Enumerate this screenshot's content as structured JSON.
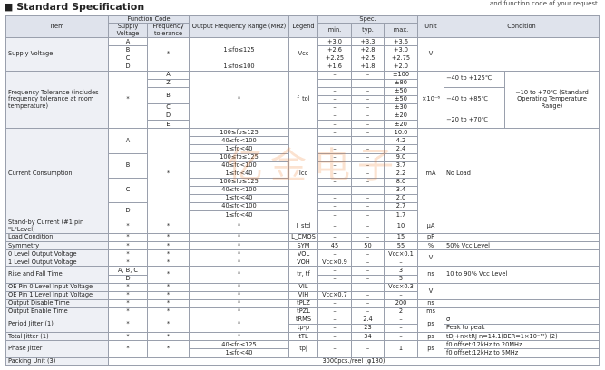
{
  "title": "■ Standard Specification",
  "note": "and function code of your request.",
  "watermark": "亿金电子",
  "table": {
    "header": [
      [
        "Item",
        "Function Code",
        "Output Frequency Range (MHz)",
        "Legend",
        "Spec.",
        "Unit",
        "Condition"
      ],
      [
        "Supply Voltage",
        "Frequency tolerance",
        "min.",
        "typ.",
        "max."
      ]
    ],
    "rows": [
      [
        "Supply Voltage",
        "A",
        "*",
        "1≤fo≤125",
        "Vcc",
        "+3.0",
        "+3.3",
        "+3.6",
        "V"
      ],
      [
        "B",
        "+2.6",
        "+2.8",
        "+3.0"
      ],
      [
        "C",
        "+2.25",
        "+2.5",
        "+2.75"
      ],
      [
        "D",
        "1≤fo≤100",
        "+1.6",
        "+1.8",
        "+2.0"
      ],
      [
        "Frequency Tolerance (includes frequency tolerance at room temperature)",
        "*",
        "A",
        "*",
        "f_tol",
        "–",
        "–",
        "±100",
        "×10⁻⁶",
        "−40 to +125℃",
        "−10 to +70℃ (Standard Operating Temperature Range)"
      ],
      [
        "Z",
        "–",
        "–",
        "±80"
      ],
      [
        "B",
        "–",
        "–",
        "±50",
        "−40 to +85℃"
      ],
      [
        "–",
        "–",
        "±50"
      ],
      [
        "C",
        "–",
        "–",
        "±30"
      ],
      [
        "D",
        "–",
        "–",
        "±20",
        "−20 to +70℃"
      ],
      [
        "E",
        "–",
        "–",
        "±20"
      ],
      [
        "Current Consumption",
        "A",
        "*",
        "100≤fo≤125",
        "Icc",
        "–",
        "–",
        "10.0",
        "mA",
        "No Load"
      ],
      [
        "40≤fo<100",
        "–",
        "–",
        "4.2"
      ],
      [
        "1≤fo<40",
        "–",
        "–",
        "2.4"
      ],
      [
        "B",
        "100≤fo≤125",
        "–",
        "–",
        "9.0"
      ],
      [
        "40≤fo<100",
        "–",
        "–",
        "3.7"
      ],
      [
        "1≤fo<40",
        "–",
        "–",
        "2.2"
      ],
      [
        "C",
        "100≤fo≤125",
        "–",
        "–",
        "8.0"
      ],
      [
        "40≤fo<100",
        "–",
        "–",
        "3.4"
      ],
      [
        "1≤fo<40",
        "–",
        "–",
        "2.0"
      ],
      [
        "D",
        "40≤fo<100",
        "–",
        "–",
        "2.7"
      ],
      [
        "1≤fo<40",
        "–",
        "–",
        "1.7"
      ],
      [
        "Stand-by Current (#1 pin \"L\"Level)",
        "*",
        "*",
        "*",
        "I_std",
        "–",
        "–",
        "10",
        "µA"
      ],
      [
        "Load Condition",
        "*",
        "*",
        "*",
        "L_CMOS",
        "–",
        "–",
        "15",
        "pF"
      ],
      [
        "Symmetry",
        "*",
        "*",
        "*",
        "SYM",
        "45",
        "50",
        "55",
        "%",
        "50% Vcc Level"
      ],
      [
        "0 Level Output Voltage",
        "*",
        "*",
        "*",
        "VOL",
        "–",
        "–",
        "Vcc×0.1",
        "V"
      ],
      [
        "1 Level Output Voltage",
        "*",
        "*",
        "*",
        "VOH",
        "Vcc×0.9",
        "–",
        "–"
      ],
      [
        "Rise and Fall Time",
        "A, B, C",
        "*",
        "*",
        "tr, tf",
        "–",
        "–",
        "3",
        "ns",
        "10 to 90% Vcc Level"
      ],
      [
        "D",
        "–",
        "–",
        "5"
      ],
      [
        "OE Pin 0 Level Input Voltage",
        "*",
        "*",
        "*",
        "VIL",
        "–",
        "–",
        "Vcc×0.3",
        "V"
      ],
      [
        "OE Pin 1 Level Input Voltage",
        "*",
        "*",
        "*",
        "VIH",
        "Vcc×0.7",
        "–",
        "–"
      ],
      [
        "Output Disable Time",
        "*",
        "*",
        "*",
        "tPLZ",
        "–",
        "–",
        "200",
        "ns"
      ],
      [
        "Output Enable Time",
        "*",
        "*",
        "*",
        "tPZL",
        "–",
        "–",
        "2",
        "ms"
      ],
      [
        "Period Jitter (1)",
        "*",
        "*",
        "*",
        "tRMS",
        "–",
        "2.4",
        "–",
        "ps",
        "σ"
      ],
      [
        "tp-p",
        "–",
        "23",
        "–",
        "Peak to peak"
      ],
      [
        "Total Jitter (1)",
        "*",
        "*",
        "*",
        "tTL",
        "–",
        "34",
        "–",
        "ps",
        "tDJ+n×tRJ n=14.1(BER=1×10⁻¹²) (2)"
      ],
      [
        "Phase Jitter",
        "*",
        "*",
        "40≤fo≤125",
        "tpj",
        "–",
        "–",
        "1",
        "ps",
        "f0 offset:12kHz to 20MHz"
      ],
      [
        "1≤fo<40",
        "f0 offset:12kHz to 5MHz"
      ],
      [
        "Packing Unit (3)",
        "3000pcs./reel (φ180)"
      ]
    ]
  }
}
